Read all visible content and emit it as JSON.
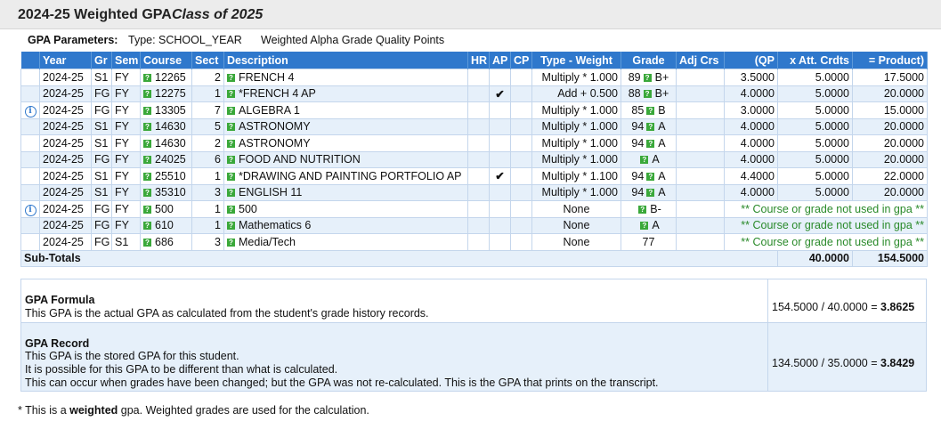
{
  "header": {
    "title": "2024-25 Weighted GPA",
    "class_label": "Class of 2025"
  },
  "params": {
    "label": "GPA Parameters:",
    "type": "Type: SCHOOL_YEAR",
    "quality": "Weighted Alpha Grade Quality Points"
  },
  "columns": [
    "Year",
    "Gr",
    "Sem",
    "Course",
    "Sect",
    "Description",
    "HR",
    "AP",
    "CP",
    "Type - Weight",
    "Grade",
    "Adj Crs",
    "(QP",
    "x Att. Crdts",
    "= Product)"
  ],
  "rows": [
    {
      "info": false,
      "year": "2024-25",
      "gr": "S1",
      "sem": "FY",
      "course": "12265",
      "sect": "2",
      "desc": "FRENCH 4",
      "ap": "",
      "type": "Multiply * 1.000",
      "grade_num": "89",
      "grade": "B+",
      "adj": "",
      "qp": "3.5000",
      "crdts": "5.0000",
      "product": "17.5000",
      "note": ""
    },
    {
      "info": false,
      "year": "2024-25",
      "gr": "FG",
      "sem": "FY",
      "course": "12275",
      "sect": "1",
      "desc": "*FRENCH 4 AP",
      "ap": "✔",
      "type": "Add + 0.500",
      "grade_num": "88",
      "grade": "B+",
      "adj": "",
      "qp": "4.0000",
      "crdts": "5.0000",
      "product": "20.0000",
      "note": ""
    },
    {
      "info": true,
      "year": "2024-25",
      "gr": "FG",
      "sem": "FY",
      "course": "13305",
      "sect": "7",
      "desc": "ALGEBRA 1",
      "ap": "",
      "type": "Multiply * 1.000",
      "grade_num": "85",
      "grade": "B",
      "adj": "",
      "qp": "3.0000",
      "crdts": "5.0000",
      "product": "15.0000",
      "note": ""
    },
    {
      "info": false,
      "year": "2024-25",
      "gr": "S1",
      "sem": "FY",
      "course": "14630",
      "sect": "5",
      "desc": "ASTRONOMY",
      "ap": "",
      "type": "Multiply * 1.000",
      "grade_num": "94",
      "grade": "A",
      "adj": "",
      "qp": "4.0000",
      "crdts": "5.0000",
      "product": "20.0000",
      "note": ""
    },
    {
      "info": false,
      "year": "2024-25",
      "gr": "S1",
      "sem": "FY",
      "course": "14630",
      "sect": "2",
      "desc": "ASTRONOMY",
      "ap": "",
      "type": "Multiply * 1.000",
      "grade_num": "94",
      "grade": "A",
      "adj": "",
      "qp": "4.0000",
      "crdts": "5.0000",
      "product": "20.0000",
      "note": ""
    },
    {
      "info": false,
      "year": "2024-25",
      "gr": "FG",
      "sem": "FY",
      "course": "24025",
      "sect": "6",
      "desc": "FOOD AND NUTRITION",
      "ap": "",
      "type": "Multiply * 1.000",
      "grade_num": "",
      "grade": "A",
      "adj": "",
      "qp": "4.0000",
      "crdts": "5.0000",
      "product": "20.0000",
      "note": ""
    },
    {
      "info": false,
      "year": "2024-25",
      "gr": "S1",
      "sem": "FY",
      "course": "25510",
      "sect": "1",
      "desc": "*DRAWING AND PAINTING PORTFOLIO AP",
      "ap": "✔",
      "type": "Multiply * 1.100",
      "grade_num": "94",
      "grade": "A",
      "adj": "",
      "qp": "4.4000",
      "crdts": "5.0000",
      "product": "22.0000",
      "note": ""
    },
    {
      "info": false,
      "year": "2024-25",
      "gr": "S1",
      "sem": "FY",
      "course": "35310",
      "sect": "3",
      "desc": "ENGLISH 11",
      "ap": "",
      "type": "Multiply * 1.000",
      "grade_num": "94",
      "grade": "A",
      "adj": "",
      "qp": "4.0000",
      "crdts": "5.0000",
      "product": "20.0000",
      "note": ""
    },
    {
      "info": true,
      "year": "2024-25",
      "gr": "FG",
      "sem": "FY",
      "course": "500",
      "sect": "1",
      "desc": "500",
      "ap": "",
      "type": "None",
      "grade_num": "",
      "grade": "B-",
      "adj": "",
      "qp": "",
      "crdts": "",
      "product": "",
      "note": "** Course or grade not used in gpa **"
    },
    {
      "info": false,
      "year": "2024-25",
      "gr": "FG",
      "sem": "FY",
      "course": "610",
      "sect": "1",
      "desc": "Mathematics 6",
      "ap": "",
      "type": "None",
      "grade_num": "",
      "grade": "A",
      "adj": "",
      "qp": "",
      "crdts": "",
      "product": "",
      "note": "** Course or grade not used in gpa **"
    },
    {
      "info": false,
      "year": "2024-25",
      "gr": "FG",
      "sem": "S1",
      "course": "686",
      "sect": "3",
      "desc": "Media/Tech",
      "ap": "",
      "type": "None",
      "grade_num": "77",
      "grade": "",
      "adj": "",
      "qp": "",
      "crdts": "",
      "product": "",
      "note": "** Course or grade not used in gpa **",
      "no_icon": true
    }
  ],
  "subtotals": {
    "label": "Sub-Totals",
    "credits": "40.0000",
    "product": "154.5000"
  },
  "formula": {
    "title": "GPA Formula",
    "text": "This GPA is the actual GPA as calculated from the student's grade history records.",
    "calc": "154.5000 / 40.0000 = ",
    "result": "3.8625"
  },
  "record": {
    "title": "GPA Record",
    "line1": "This GPA is the stored GPA for this student.",
    "line2": "It is possible for this GPA to be different than what is calculated.",
    "line3": "This can occur when grades have been changed; but the GPA was not re-calculated. This is the GPA that prints on the transcript.",
    "calc": "134.5000 / 35.0000 = ",
    "result": "3.8429"
  },
  "footer": {
    "pre": "* This is a ",
    "bold": "weighted",
    "post": " gpa. Weighted grades are used for the calculation."
  }
}
